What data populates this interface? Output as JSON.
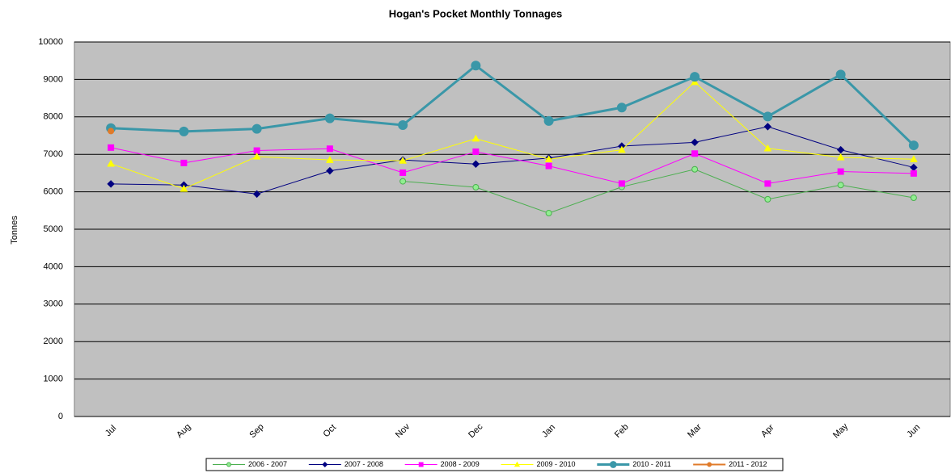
{
  "chart_data": {
    "type": "line",
    "title": "Hogan's Pocket Monthly Tonnages",
    "y_label": "Tonnes",
    "categories": [
      "Jul",
      "Aug",
      "Sep",
      "Oct",
      "Nov",
      "Dec",
      "Jan",
      "Feb",
      "Mar",
      "Apr",
      "May",
      "Jun"
    ],
    "series": [
      {
        "name": "2006 - 2007",
        "color": "#4caf50",
        "fill": "#90ee90",
        "marker": "circle",
        "width": 1,
        "values": [
          null,
          null,
          null,
          null,
          6280,
          6120,
          5430,
          6130,
          6600,
          5800,
          6180,
          5840
        ]
      },
      {
        "name": "2007 - 2008",
        "color": "#000080",
        "fill": "#000080",
        "marker": "diamond",
        "width": 1,
        "values": [
          6210,
          6180,
          5940,
          6560,
          6850,
          6740,
          6900,
          7220,
          7320,
          7740,
          7120,
          6650
        ]
      },
      {
        "name": "2008 - 2009",
        "color": "#ff00ff",
        "fill": "#ff00ff",
        "marker": "square",
        "width": 1,
        "values": [
          7180,
          6770,
          7100,
          7150,
          6510,
          7070,
          6690,
          6220,
          7020,
          6220,
          6540,
          6490
        ]
      },
      {
        "name": "2009 - 2010",
        "color": "#ffff00",
        "fill": "#ffff00",
        "marker": "triangle",
        "width": 1,
        "values": [
          6750,
          6080,
          6940,
          6850,
          6830,
          7420,
          6870,
          7120,
          8930,
          7160,
          6920,
          6870
        ]
      },
      {
        "name": "2010 - 2011",
        "color": "#3a97a8",
        "fill": "#3a97a8",
        "marker": "circle-large",
        "width": 3,
        "values": [
          7700,
          7610,
          7680,
          7960,
          7780,
          9370,
          7890,
          8250,
          9070,
          8010,
          9130,
          7240
        ]
      },
      {
        "name": "2011 - 2012",
        "color": "#e07b2a",
        "fill": "#e07b2a",
        "marker": "circle",
        "width": 2,
        "values": [
          7620,
          null,
          null,
          null,
          null,
          null,
          null,
          null,
          null,
          null,
          null,
          null
        ]
      }
    ],
    "ylim": [
      0,
      10000
    ],
    "yticks": [
      0,
      1000,
      2000,
      3000,
      4000,
      5000,
      6000,
      7000,
      8000,
      9000,
      10000
    ],
    "grid": true,
    "legend": "bottom",
    "plot_background": "#c0c0c0"
  }
}
